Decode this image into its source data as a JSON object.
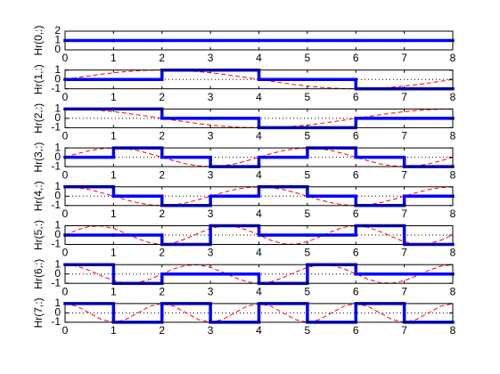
{
  "chart_data": [
    {
      "type": "step",
      "ylabel": "Hr(0,:)",
      "xlim": [
        0,
        8
      ],
      "xticks": [
        0,
        1,
        2,
        3,
        4,
        5,
        6,
        7,
        8
      ],
      "ylim": [
        0,
        2
      ],
      "yticks": [
        0,
        1,
        2
      ],
      "zero_line": false,
      "series": [
        {
          "color": "#0000ff",
          "x": [
            0,
            1,
            2,
            3,
            4,
            5,
            6,
            7
          ],
          "values": [
            1,
            1,
            1,
            1,
            1,
            1,
            1,
            1
          ]
        }
      ]
    },
    {
      "type": "step",
      "ylabel": "Hr(1,:)",
      "xlim": [
        0,
        8
      ],
      "xticks": [
        0,
        1,
        2,
        3,
        4,
        5,
        6,
        7,
        8
      ],
      "ylim": [
        -1,
        1
      ],
      "yticks": [
        -1,
        0,
        1
      ],
      "zero_line": true,
      "series": [
        {
          "color": "#0000ff",
          "x": [
            0,
            1,
            2,
            3,
            4,
            5,
            6,
            7
          ],
          "values": [
            0,
            0,
            1,
            1,
            0,
            0,
            -1,
            -1
          ]
        },
        {
          "color": "#ff0000",
          "linestyle": "dashed",
          "x": [
            0,
            0.25,
            0.5,
            0.75,
            1,
            1.25,
            1.5,
            1.75,
            2,
            2.25,
            2.5,
            2.75,
            3,
            3.25,
            3.5,
            3.75,
            4,
            4.25,
            4.5,
            4.75,
            5,
            5.25,
            5.5,
            5.75,
            6,
            6.25,
            6.5,
            6.75,
            7,
            7.25,
            7.5,
            7.75,
            8
          ],
          "values": [
            0,
            0.2,
            0.38,
            0.56,
            0.71,
            0.83,
            0.92,
            0.98,
            1,
            0.98,
            0.92,
            0.83,
            0.71,
            0.56,
            0.38,
            0.2,
            0,
            -0.2,
            -0.38,
            -0.56,
            -0.71,
            -0.83,
            -0.92,
            -0.98,
            -1,
            -0.98,
            -0.92,
            -0.83,
            -0.71,
            -0.56,
            -0.38,
            -0.2,
            0
          ]
        }
      ]
    },
    {
      "type": "step",
      "ylabel": "Hr(2,:)",
      "xlim": [
        0,
        8
      ],
      "xticks": [
        0,
        1,
        2,
        3,
        4,
        5,
        6,
        7,
        8
      ],
      "ylim": [
        -1,
        1
      ],
      "yticks": [
        -1,
        0,
        1
      ],
      "zero_line": true,
      "series": [
        {
          "color": "#0000ff",
          "x": [
            0,
            1,
            2,
            3,
            4,
            5,
            6,
            7
          ],
          "values": [
            1,
            1,
            0,
            0,
            -1,
            -1,
            0,
            0
          ]
        },
        {
          "color": "#ff0000",
          "linestyle": "dashed",
          "x": [
            0,
            0.25,
            0.5,
            0.75,
            1,
            1.25,
            1.5,
            1.75,
            2,
            2.25,
            2.5,
            2.75,
            3,
            3.25,
            3.5,
            3.75,
            4,
            4.25,
            4.5,
            4.75,
            5,
            5.25,
            5.5,
            5.75,
            6,
            6.25,
            6.5,
            6.75,
            7,
            7.25,
            7.5,
            7.75,
            8
          ],
          "values": [
            1,
            0.98,
            0.92,
            0.83,
            0.71,
            0.56,
            0.38,
            0.2,
            0,
            -0.2,
            -0.38,
            -0.56,
            -0.71,
            -0.83,
            -0.92,
            -0.98,
            -1,
            -0.98,
            -0.92,
            -0.83,
            -0.71,
            -0.56,
            -0.38,
            -0.2,
            0,
            0.2,
            0.38,
            0.56,
            0.71,
            0.83,
            0.92,
            0.98,
            1
          ]
        }
      ]
    },
    {
      "type": "step",
      "ylabel": "Hr(3,:)",
      "xlim": [
        0,
        8
      ],
      "xticks": [
        0,
        1,
        2,
        3,
        4,
        5,
        6,
        7,
        8
      ],
      "ylim": [
        -1,
        1
      ],
      "yticks": [
        -1,
        0,
        1
      ],
      "zero_line": true,
      "series": [
        {
          "color": "#0000ff",
          "x": [
            0,
            1,
            2,
            3,
            4,
            5,
            6,
            7
          ],
          "values": [
            0,
            1,
            0,
            -1,
            0,
            1,
            0,
            -1
          ]
        },
        {
          "color": "#ff0000",
          "linestyle": "dashed",
          "x": [
            0,
            0.25,
            0.5,
            0.75,
            1,
            1.25,
            1.5,
            1.75,
            2,
            2.25,
            2.5,
            2.75,
            3,
            3.25,
            3.5,
            3.75,
            4,
            4.25,
            4.5,
            4.75,
            5,
            5.25,
            5.5,
            5.75,
            6,
            6.25,
            6.5,
            6.75,
            7,
            7.25,
            7.5,
            7.75,
            8
          ],
          "values": [
            0,
            0.38,
            0.71,
            0.92,
            1,
            0.92,
            0.71,
            0.38,
            0,
            -0.38,
            -0.71,
            -0.92,
            -1,
            -0.92,
            -0.71,
            -0.38,
            0,
            0.38,
            0.71,
            0.92,
            1,
            0.92,
            0.71,
            0.38,
            0,
            -0.38,
            -0.71,
            -0.92,
            -1,
            -0.92,
            -0.71,
            -0.38,
            0
          ]
        }
      ]
    },
    {
      "type": "step",
      "ylabel": "Hr(4,:)",
      "xlim": [
        0,
        8
      ],
      "xticks": [
        0,
        1,
        2,
        3,
        4,
        5,
        6,
        7,
        8
      ],
      "ylim": [
        -1,
        1
      ],
      "yticks": [
        -1,
        0,
        1
      ],
      "zero_line": true,
      "series": [
        {
          "color": "#0000ff",
          "x": [
            0,
            1,
            2,
            3,
            4,
            5,
            6,
            7
          ],
          "values": [
            1,
            0,
            -1,
            0,
            1,
            0,
            -1,
            0
          ]
        },
        {
          "color": "#ff0000",
          "linestyle": "dashed",
          "x": [
            0,
            0.25,
            0.5,
            0.75,
            1,
            1.25,
            1.5,
            1.75,
            2,
            2.25,
            2.5,
            2.75,
            3,
            3.25,
            3.5,
            3.75,
            4,
            4.25,
            4.5,
            4.75,
            5,
            5.25,
            5.5,
            5.75,
            6,
            6.25,
            6.5,
            6.75,
            7,
            7.25,
            7.5,
            7.75,
            8
          ],
          "values": [
            1,
            0.92,
            0.71,
            0.38,
            0,
            -0.38,
            -0.71,
            -0.92,
            -1,
            -0.92,
            -0.71,
            -0.38,
            0,
            0.38,
            0.71,
            0.92,
            1,
            0.92,
            0.71,
            0.38,
            0,
            -0.38,
            -0.71,
            -0.92,
            -1,
            -0.92,
            -0.71,
            -0.38,
            0,
            0.38,
            0.71,
            0.92,
            1
          ]
        }
      ]
    },
    {
      "type": "step",
      "ylabel": "Hr(5,:)",
      "xlim": [
        0,
        8
      ],
      "xticks": [
        0,
        1,
        2,
        3,
        4,
        5,
        6,
        7,
        8
      ],
      "ylim": [
        -1,
        1
      ],
      "yticks": [
        -1,
        0,
        1
      ],
      "zero_line": true,
      "series": [
        {
          "color": "#0000ff",
          "x": [
            0,
            1,
            2,
            3,
            4,
            5,
            6,
            7
          ],
          "values": [
            0,
            0,
            -1,
            1,
            0,
            0,
            1,
            -1
          ]
        },
        {
          "color": "#ff0000",
          "linestyle": "dashed",
          "x": [
            0,
            0.25,
            0.5,
            0.75,
            1,
            1.25,
            1.5,
            1.75,
            2,
            2.25,
            2.5,
            2.75,
            3,
            3.25,
            3.5,
            3.75,
            4,
            4.25,
            4.5,
            4.75,
            5,
            5.25,
            5.5,
            5.75,
            6,
            6.25,
            6.5,
            6.75,
            7,
            7.25,
            7.5,
            7.75,
            8
          ],
          "values": [
            0,
            0.56,
            0.92,
            0.98,
            0.71,
            0.2,
            -0.38,
            -0.83,
            -1,
            -0.83,
            -0.38,
            0.2,
            0.71,
            0.98,
            0.92,
            0.56,
            0,
            -0.56,
            -0.92,
            -0.98,
            -0.71,
            -0.2,
            0.38,
            0.83,
            1,
            0.83,
            0.38,
            -0.2,
            -0.71,
            -0.98,
            -0.92,
            -0.56,
            0
          ]
        }
      ]
    },
    {
      "type": "step",
      "ylabel": "Hr(6,:)",
      "xlim": [
        0,
        8
      ],
      "xticks": [
        0,
        1,
        2,
        3,
        4,
        5,
        6,
        7,
        8
      ],
      "ylim": [
        -1,
        1
      ],
      "yticks": [
        -1,
        0,
        1
      ],
      "zero_line": true,
      "series": [
        {
          "color": "#0000ff",
          "x": [
            0,
            1,
            2,
            3,
            4,
            5,
            6,
            7
          ],
          "values": [
            1,
            -1,
            0,
            0,
            -1,
            1,
            0,
            0
          ]
        },
        {
          "color": "#ff0000",
          "linestyle": "dashed",
          "x": [
            0,
            0.25,
            0.5,
            0.75,
            1,
            1.25,
            1.5,
            1.75,
            2,
            2.25,
            2.5,
            2.75,
            3,
            3.25,
            3.5,
            3.75,
            4,
            4.25,
            4.5,
            4.75,
            5,
            5.25,
            5.5,
            5.75,
            6,
            6.25,
            6.5,
            6.75,
            7,
            7.25,
            7.5,
            7.75,
            8
          ],
          "values": [
            1,
            0.83,
            0.38,
            -0.2,
            -0.71,
            -0.98,
            -0.92,
            -0.56,
            0,
            0.56,
            0.92,
            0.98,
            0.71,
            0.2,
            -0.38,
            -0.83,
            -1,
            -0.83,
            -0.38,
            0.2,
            0.71,
            0.98,
            0.92,
            0.56,
            0,
            -0.56,
            -0.92,
            -0.98,
            -0.71,
            -0.2,
            0.38,
            0.83,
            1
          ]
        }
      ]
    },
    {
      "type": "step",
      "ylabel": "Hr(7,:)",
      "xlim": [
        0,
        8
      ],
      "xticks": [
        0,
        1,
        2,
        3,
        4,
        5,
        6,
        7,
        8
      ],
      "ylim": [
        -1,
        1
      ],
      "yticks": [
        -1,
        0,
        1
      ],
      "zero_line": true,
      "series": [
        {
          "color": "#0000ff",
          "x": [
            0,
            1,
            2,
            3,
            4,
            5,
            6,
            7
          ],
          "values": [
            1,
            -1,
            1,
            -1,
            1,
            -1,
            1,
            -1
          ]
        },
        {
          "color": "#ff0000",
          "linestyle": "dashed",
          "x": [
            0,
            0.25,
            0.5,
            0.75,
            1,
            1.25,
            1.5,
            1.75,
            2,
            2.25,
            2.5,
            2.75,
            3,
            3.25,
            3.5,
            3.75,
            4,
            4.25,
            4.5,
            4.75,
            5,
            5.25,
            5.5,
            5.75,
            6,
            6.25,
            6.5,
            6.75,
            7,
            7.25,
            7.5,
            7.75,
            8
          ],
          "values": [
            1,
            0.71,
            0,
            -0.71,
            -1,
            -0.71,
            0,
            0.71,
            1,
            0.71,
            0,
            -0.71,
            -1,
            -0.71,
            0,
            0.71,
            1,
            0.71,
            0,
            -0.71,
            -1,
            -0.71,
            0,
            0.71,
            1,
            0.71,
            0,
            -0.71,
            -1,
            -0.71,
            0,
            0.71,
            1
          ]
        }
      ]
    }
  ]
}
